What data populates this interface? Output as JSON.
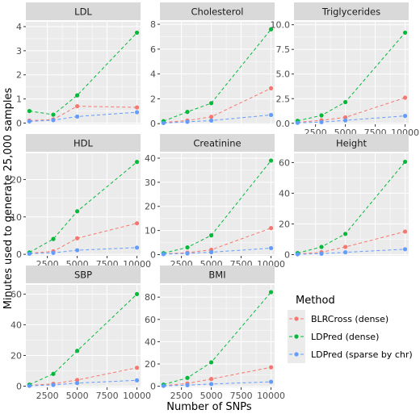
{
  "chart_data": {
    "type": "line",
    "xlabel": "Number of SNPs",
    "ylabel": "Minutes used to generate 25,000 samples",
    "legend": {
      "title": "Method",
      "placement": "right",
      "entries": [
        {
          "label": "BLRCross (dense)",
          "color": "#F8766D"
        },
        {
          "label": "LDPred (dense)",
          "color": "#00BA38"
        },
        {
          "label": "LDPred (sparse by chr)",
          "color": "#619CFF"
        }
      ]
    },
    "x": [
      1000,
      3000,
      5000,
      10000
    ],
    "x_ticks": [
      2500,
      5000,
      7500,
      10000
    ],
    "x_tick_labels": [
      "2500",
      "5000",
      "7500",
      "10000"
    ],
    "xlim": [
      700,
      10300
    ],
    "grid": true,
    "line_style": "dashed",
    "panels": [
      {
        "title": "LDL",
        "ylim": [
          -0.05,
          4.2
        ],
        "yticks": [
          0,
          1,
          2,
          3,
          4
        ],
        "series": [
          {
            "name": "BLRCross (dense)",
            "values": [
              0.1,
              0.15,
              0.7,
              0.65
            ]
          },
          {
            "name": "LDPred (dense)",
            "values": [
              0.5,
              0.35,
              1.15,
              3.75
            ]
          },
          {
            "name": "LDPred (sparse by chr)",
            "values": [
              0.07,
              0.12,
              0.27,
              0.45
            ]
          }
        ]
      },
      {
        "title": "Cholesterol",
        "ylim": [
          -0.05,
          8.2
        ],
        "yticks": [
          0,
          2,
          4,
          6,
          8
        ],
        "series": [
          {
            "name": "BLRCross (dense)",
            "values": [
              0.1,
              0.25,
              0.55,
              2.85
            ]
          },
          {
            "name": "LDPred (dense)",
            "values": [
              0.2,
              0.95,
              1.65,
              7.6
            ]
          },
          {
            "name": "LDPred (sparse by chr)",
            "values": [
              0.05,
              0.15,
              0.25,
              0.7
            ]
          }
        ]
      },
      {
        "title": "Triglycerides",
        "ylim": [
          -0.1,
          10.3
        ],
        "yticks": [
          0,
          2.5,
          5,
          7.5,
          10
        ],
        "ytick_labels": [
          "0.0",
          "2.5",
          "5.0",
          "7.5",
          "10.0"
        ],
        "series": [
          {
            "name": "BLRCross (dense)",
            "values": [
              0.1,
              0.3,
              0.6,
              2.6
            ]
          },
          {
            "name": "LDPred (dense)",
            "values": [
              0.25,
              0.8,
              2.15,
              9.2
            ]
          },
          {
            "name": "LDPred (sparse by chr)",
            "values": [
              0.05,
              0.12,
              0.3,
              0.75
            ]
          }
        ]
      },
      {
        "title": "HDL",
        "ylim": [
          -0.4,
          27
        ],
        "yticks": [
          0,
          10,
          20
        ],
        "series": [
          {
            "name": "BLRCross (dense)",
            "values": [
              0.3,
              0.8,
              4.3,
              8.3
            ]
          },
          {
            "name": "LDPred (dense)",
            "values": [
              0.5,
              4.1,
              11.5,
              24.7
            ]
          },
          {
            "name": "LDPred (sparse by chr)",
            "values": [
              0.15,
              0.4,
              1.1,
              1.8
            ]
          }
        ]
      },
      {
        "title": "Creatinine",
        "ylim": [
          -0.5,
          42
        ],
        "yticks": [
          0,
          10,
          20,
          30,
          40
        ],
        "series": [
          {
            "name": "BLRCross (dense)",
            "values": [
              0.3,
              0.8,
              2.0,
              11.0
            ]
          },
          {
            "name": "LDPred (dense)",
            "values": [
              0.6,
              3.0,
              8.0,
              39.0
            ]
          },
          {
            "name": "LDPred (sparse by chr)",
            "values": [
              0.2,
              0.5,
              1.0,
              2.7
            ]
          }
        ]
      },
      {
        "title": "Height",
        "ylim": [
          -0.8,
          66
        ],
        "yticks": [
          0,
          20,
          40,
          60
        ],
        "series": [
          {
            "name": "BLRCross (dense)",
            "values": [
              0.5,
              1.5,
              5.0,
              15.0
            ]
          },
          {
            "name": "LDPred (dense)",
            "values": [
              1.0,
              5.0,
              13.5,
              60.5
            ]
          },
          {
            "name": "LDPred (sparse by chr)",
            "values": [
              0.2,
              0.6,
              1.5,
              3.5
            ]
          }
        ]
      },
      {
        "title": "SBP",
        "ylim": [
          -0.8,
          66
        ],
        "yticks": [
          0,
          20,
          40,
          60
        ],
        "series": [
          {
            "name": "BLRCross (dense)",
            "values": [
              0.5,
              1.5,
              4.0,
              12.0
            ]
          },
          {
            "name": "LDPred (dense)",
            "values": [
              1.0,
              8.0,
              23.0,
              60.0
            ]
          },
          {
            "name": "LDPred (sparse by chr)",
            "values": [
              0.2,
              0.8,
              2.0,
              3.8
            ]
          }
        ]
      },
      {
        "title": "BMI",
        "ylim": [
          -1,
          91
        ],
        "yticks": [
          0,
          20,
          40,
          60,
          80
        ],
        "series": [
          {
            "name": "BLRCross (dense)",
            "values": [
              0.5,
              2.5,
              6.5,
              17.0
            ]
          },
          {
            "name": "LDPred (dense)",
            "values": [
              1.5,
              7.5,
              21.5,
              84.5
            ]
          },
          {
            "name": "LDPred (sparse by chr)",
            "values": [
              0.3,
              1.0,
              2.0,
              4.0
            ]
          }
        ]
      }
    ]
  }
}
